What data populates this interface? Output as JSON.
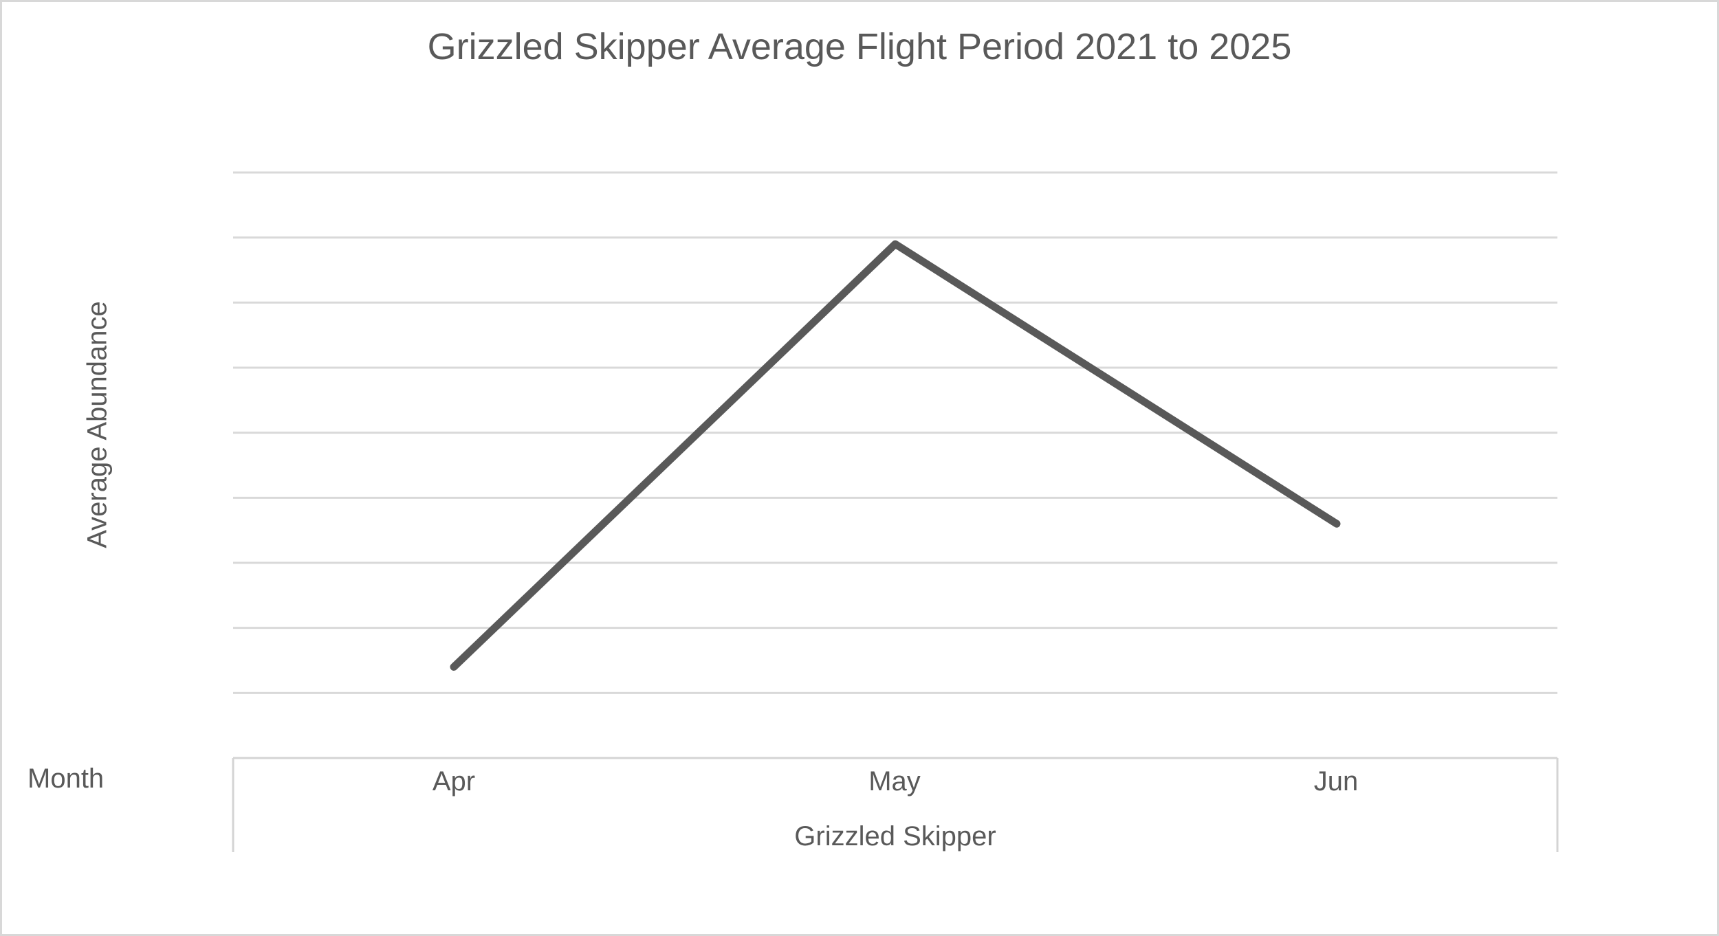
{
  "window": {
    "background_color": "#ffffff",
    "frame_border_color": "#d8d8d8"
  },
  "chart": {
    "title": "Grizzled Skipper Average Flight Period 2021 to 2025",
    "y_axis_label": "Average Abundance",
    "x_axis_label": "Month",
    "group_label": "Grizzled Skipper",
    "text_color": "#595959",
    "line_color": "#595959",
    "gridline_color": "#d9d9d9",
    "axis_frame_color": "#d4d4d4"
  },
  "chart_data": {
    "type": "line",
    "title": "Grizzled Skipper Average Flight Period 2021 to 2025",
    "xlabel": "Month",
    "ylabel": "Average Abundance",
    "categories": [
      "Apr",
      "May",
      "Jun"
    ],
    "series": [
      {
        "name": "Grizzled Skipper",
        "values": [
          1.4,
          7.9,
          3.6
        ]
      }
    ],
    "ylim": [
      0,
      9
    ],
    "y_gridline_step": 1,
    "y_tick_labels_visible": false,
    "gridlines": "horizontal",
    "legend": "none",
    "note": "y-axis has no visible tick labels; values estimated in gridline units above the axis line"
  }
}
